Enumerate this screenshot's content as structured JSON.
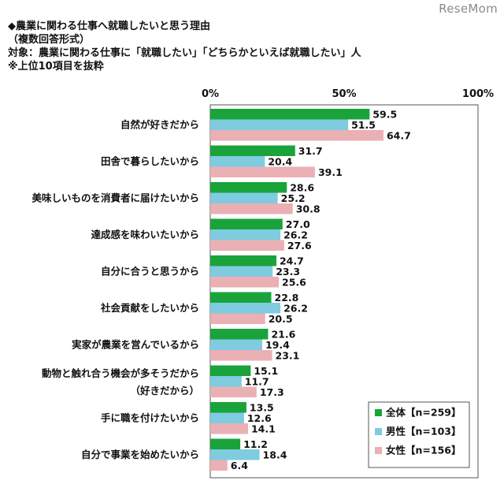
{
  "header": {
    "watermark": "ReseMom",
    "line1": "◆農業に関わる仕事へ就職したいと思う理由",
    "line2": "（複数回答形式）",
    "line3": "対象：農業に関わる仕事に「就職したい」「どちらかといえば就職したい」人",
    "line4": "※上位10項目を抜粋"
  },
  "chart_data": {
    "type": "bar",
    "orientation": "horizontal",
    "xlim": [
      0,
      100
    ],
    "ticks": [
      "0%",
      "50%",
      "100%"
    ],
    "categories": [
      [
        "自然が好きだから"
      ],
      [
        "田舎で暮らしたいから"
      ],
      [
        "美味しいものを消費者に届けたいから"
      ],
      [
        "達成感を味わいたいから"
      ],
      [
        "自分に合うと思うから"
      ],
      [
        "社会貢献をしたいから"
      ],
      [
        "実家が農業を営んでいるから"
      ],
      [
        "動物と触れ合う機会が多そうだから",
        "（好きだから）"
      ],
      [
        "手に職を付けたいから"
      ],
      [
        "自分で事業を始めたいから"
      ]
    ],
    "series": [
      {
        "name": "全体【n=259】",
        "color": "#1aa33a",
        "values": [
          59.5,
          31.7,
          28.6,
          27.0,
          24.7,
          22.8,
          21.6,
          15.1,
          13.5,
          11.2
        ]
      },
      {
        "name": "男性【n=103】",
        "color": "#7fcbe0",
        "values": [
          51.5,
          20.4,
          25.2,
          26.2,
          23.3,
          26.2,
          19.4,
          11.7,
          12.6,
          18.4
        ]
      },
      {
        "name": "女性【n=156】",
        "color": "#eab0b4",
        "values": [
          64.7,
          39.1,
          30.8,
          27.6,
          25.6,
          20.5,
          23.1,
          17.3,
          14.1,
          6.4
        ]
      }
    ],
    "legend_position": "bottom-right",
    "grid": false
  }
}
